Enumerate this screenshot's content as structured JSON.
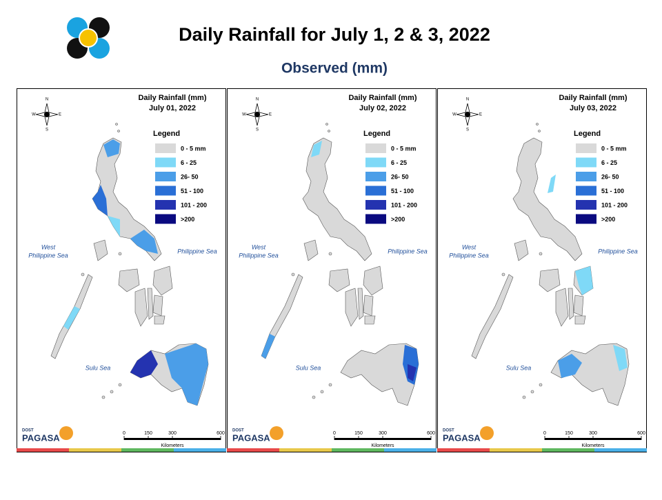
{
  "header": {
    "title": "Daily Rainfall for July 1, 2 & 3, 2022",
    "subtitle": "Observed (mm)"
  },
  "panels": [
    {
      "title": "Daily Rainfall (mm)",
      "date": "July 01, 2022"
    },
    {
      "title": "Daily Rainfall (mm)",
      "date": "July 02, 2022"
    },
    {
      "title": "Daily Rainfall (mm)",
      "date": "July 03, 2022"
    }
  ],
  "legend": {
    "title": "Legend",
    "items": [
      {
        "label": "0 - 5 mm",
        "color": "#d9d9d9"
      },
      {
        "label": "6 - 25",
        "color": "#7fd9f7"
      },
      {
        "label": "26- 50",
        "color": "#4b9ee8"
      },
      {
        "label": "51 - 100",
        "color": "#2a6fd6"
      },
      {
        "label": "101 - 200",
        "color": "#2433b0"
      },
      {
        "label": ">200",
        "color": "#0a0a80"
      }
    ]
  },
  "compass": [
    "N",
    "W",
    "E",
    "S"
  ],
  "seas": {
    "west": [
      "West",
      "Philippine Sea"
    ],
    "east": "Philippine Sea",
    "sulu": "Sulu Sea"
  },
  "scale": {
    "ticks": [
      0,
      150,
      300,
      600
    ],
    "unit": "Kilometers"
  },
  "logo": {
    "top": "DOST",
    "name": "PAGASA"
  }
}
